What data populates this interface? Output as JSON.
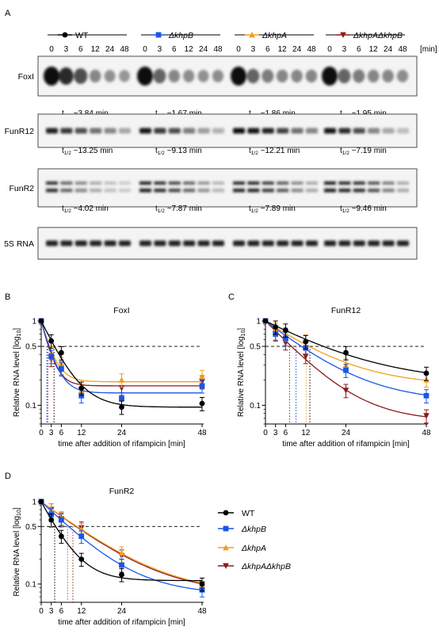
{
  "panel_a": {
    "label": "A",
    "strains": [
      {
        "name": "WT",
        "color": "#000000",
        "marker": "circle"
      },
      {
        "name": "ΔkhpB",
        "color": "#1a56e8",
        "marker": "square"
      },
      {
        "name": "ΔkhpA",
        "color": "#f0a020",
        "marker": "triangle"
      },
      {
        "name": "ΔkhpAΔkhpB",
        "color": "#8b1a1a",
        "marker": "triangle-down"
      }
    ],
    "timepoints": [
      "0",
      "3",
      "6",
      "12",
      "24",
      "48"
    ],
    "time_unit": "[min]",
    "blots": [
      {
        "name": "FoxI",
        "halflives": [
          "t1/2 ~3.84 min",
          "t1/2 ~1.67 min",
          "t1/2 ~1.86 min",
          "t1/2 ~1.95 min"
        ]
      },
      {
        "name": "FunR12",
        "halflives": [
          "t1/2 ~13.25 min",
          "t1/2 ~9.13 min",
          "t1/2 ~12.21 min",
          "t1/2 ~7.19 min"
        ]
      },
      {
        "name": "FunR2",
        "halflives": [
          "t1/2 ~4.02 min",
          "t1/2 ~7.87 min",
          "t1/2 ~7.89 min",
          "t1/2 ~9.46 min"
        ]
      },
      {
        "name": "5S RNA",
        "halflives": []
      }
    ]
  },
  "chart_data": [
    {
      "panel": "B",
      "type": "line",
      "title": "FoxI",
      "xlabel": "time after addition of rifampicin [min]",
      "ylabel": "Relative RNA level [log10]",
      "yscale": "log",
      "ylim": [
        0.06,
        1
      ],
      "xlim": [
        0,
        48
      ],
      "xticks": [
        0,
        3,
        6,
        12,
        24,
        48
      ],
      "yticks": [
        1,
        0.5,
        0.1
      ],
      "threshold": 0.5,
      "x": [
        0,
        3,
        6,
        12,
        24,
        48
      ],
      "series": [
        {
          "name": "WT",
          "values": [
            1,
            0.58,
            0.42,
            0.16,
            0.095,
            0.105
          ]
        },
        {
          "name": "ΔkhpB",
          "values": [
            1,
            0.38,
            0.27,
            0.13,
            0.12,
            0.17
          ]
        },
        {
          "name": "ΔkhpA",
          "values": [
            1,
            0.42,
            0.31,
            0.15,
            0.2,
            0.22
          ]
        },
        {
          "name": "ΔkhpAΔkhpB",
          "values": [
            1,
            0.35,
            0.28,
            0.15,
            0.16,
            0.19
          ]
        }
      ],
      "halflife_x": [
        3.84,
        1.67,
        1.86,
        1.95
      ]
    },
    {
      "panel": "C",
      "type": "line",
      "title": "FunR12",
      "xlabel": "time after addition of rifampicin [min]",
      "ylabel": "Relative RNA level [log10]",
      "yscale": "log",
      "ylim": [
        0.06,
        1
      ],
      "xlim": [
        0,
        48
      ],
      "xticks": [
        0,
        3,
        6,
        12,
        24,
        48
      ],
      "yticks": [
        1,
        0.5,
        0.1
      ],
      "threshold": 0.5,
      "x": [
        0,
        3,
        6,
        12,
        24,
        48
      ],
      "series": [
        {
          "name": "WT",
          "values": [
            1,
            0.85,
            0.78,
            0.57,
            0.42,
            0.24
          ]
        },
        {
          "name": "ΔkhpB",
          "values": [
            1,
            0.7,
            0.62,
            0.48,
            0.26,
            0.13
          ]
        },
        {
          "name": "ΔkhpA",
          "values": [
            1,
            0.8,
            0.7,
            0.58,
            0.3,
            0.2
          ]
        },
        {
          "name": "ΔkhpAΔkhpB",
          "values": [
            1,
            0.72,
            0.55,
            0.38,
            0.15,
            0.075
          ]
        }
      ],
      "halflife_x": [
        13.25,
        9.13,
        12.21,
        7.19
      ]
    },
    {
      "panel": "D",
      "type": "line",
      "title": "FunR2",
      "xlabel": "time after addition of rifampicin [min]",
      "ylabel": "Relative RNA level [log10]",
      "yscale": "log",
      "ylim": [
        0.06,
        1
      ],
      "xlim": [
        0,
        48
      ],
      "xticks": [
        0,
        3,
        6,
        12,
        24,
        48
      ],
      "yticks": [
        1,
        0.5,
        0.1
      ],
      "threshold": 0.5,
      "x": [
        0,
        3,
        6,
        12,
        24,
        48
      ],
      "series": [
        {
          "name": "WT",
          "values": [
            1,
            0.6,
            0.38,
            0.2,
            0.13,
            0.1
          ]
        },
        {
          "name": "ΔkhpB",
          "values": [
            1,
            0.7,
            0.6,
            0.38,
            0.17,
            0.085
          ]
        },
        {
          "name": "ΔkhpA",
          "values": [
            1,
            0.8,
            0.64,
            0.46,
            0.24,
            0.1
          ]
        },
        {
          "name": "ΔkhpAΔkhpB",
          "values": [
            1,
            0.8,
            0.62,
            0.48,
            0.22,
            0.1
          ]
        }
      ],
      "halflife_x": [
        4.02,
        7.87,
        7.89,
        9.46
      ]
    }
  ]
}
